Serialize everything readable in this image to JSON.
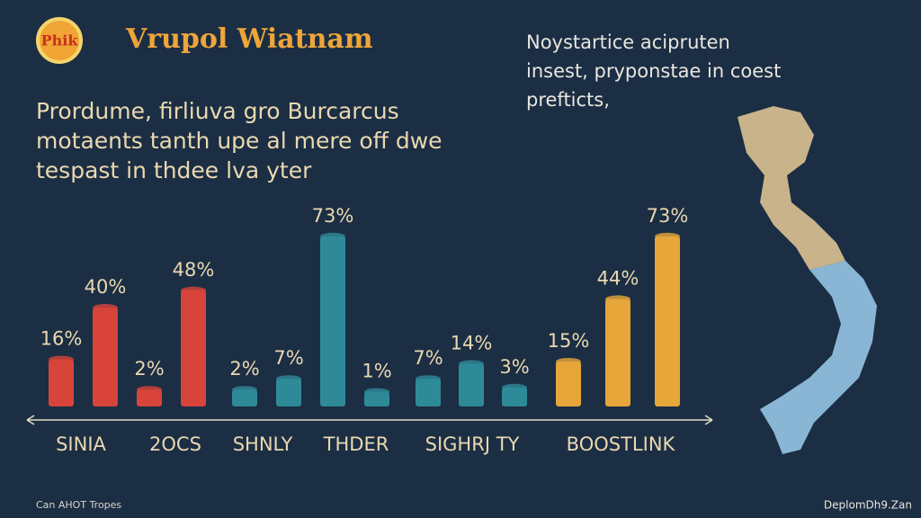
{
  "header": {
    "logo": "Phik",
    "title": "Vrupol Wiatnam"
  },
  "description": [
    "Prordume, firliuva gro Burcarcus",
    "motaents tanth upe al mere off dwe",
    "tespast in thdee lva yter"
  ],
  "side_text": [
    "Noystartice acipruten",
    "insest, pryponstae in coest",
    "prefticts,"
  ],
  "chart_data": {
    "type": "bar",
    "groups": [
      {
        "color": "#d8443a",
        "values": [
          16,
          40,
          2,
          48
        ],
        "value_labels": [
          "16%",
          "40%",
          "2%",
          "48%"
        ]
      },
      {
        "color": "#2f8a98",
        "values": [
          2,
          7,
          73,
          1
        ],
        "value_labels": [
          "2%",
          "7%",
          "73%",
          "1%"
        ]
      },
      {
        "color": "#2f8a98",
        "values": [
          7,
          14,
          3
        ],
        "value_labels": [
          "7%",
          "14%",
          "3%"
        ]
      },
      {
        "color": "#e6a63a",
        "values": [
          15,
          44,
          73
        ],
        "value_labels": [
          "15%",
          "44%",
          "73%"
        ]
      }
    ],
    "axis_labels": [
      "SINIA",
      "2OCS",
      "SHNLY",
      "THDER",
      "SIGHRJ TY",
      "BOOSTLINK"
    ]
  },
  "footer": {
    "left": "Can AHOT Tropes",
    "right": "DeplomDh9.Zan"
  }
}
